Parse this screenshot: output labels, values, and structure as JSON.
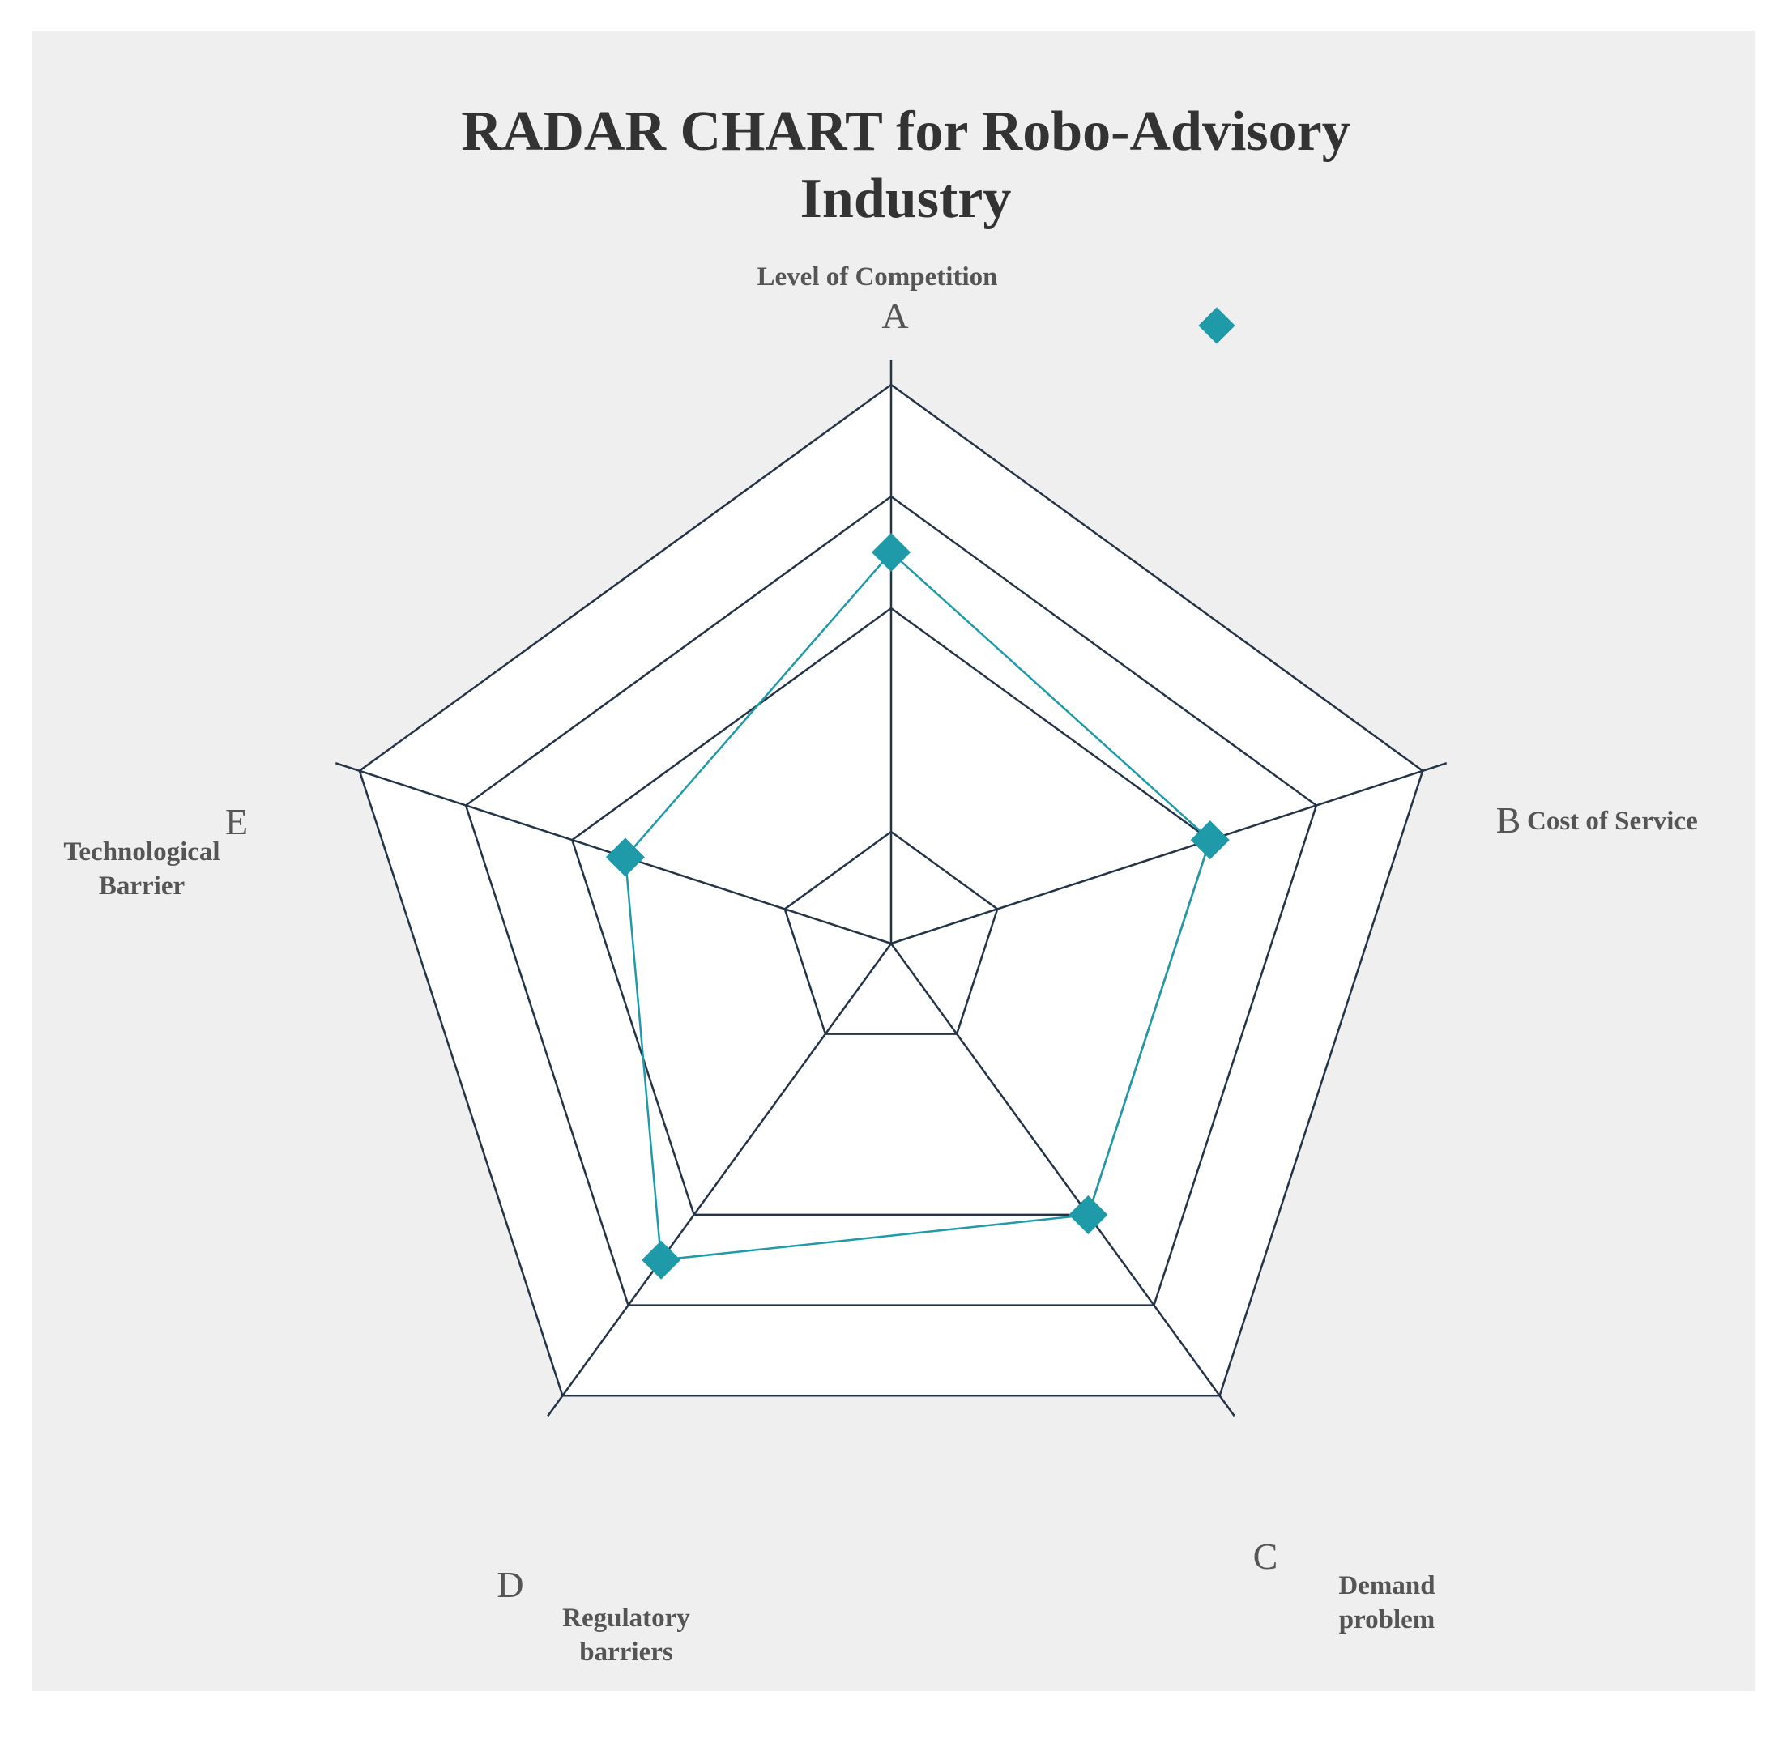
{
  "chart_data": {
    "type": "radar",
    "title": "RADAR CHART for Robo-Advisory Industry",
    "title_lines": [
      "RADAR CHART for Robo-Advisory",
      "Industry"
    ],
    "axes": [
      {
        "letter": "A",
        "label_lines": [
          "Level of Competition"
        ]
      },
      {
        "letter": "B",
        "label_lines": [
          "Cost of Service"
        ]
      },
      {
        "letter": "C",
        "label_lines": [
          "Demand",
          "problem"
        ]
      },
      {
        "letter": "D",
        "label_lines": [
          "Regulatory",
          "barriers"
        ]
      },
      {
        "letter": "E",
        "label_lines": [
          "Technological",
          "Barrier"
        ]
      }
    ],
    "rings": [
      1,
      3,
      4,
      5
    ],
    "range": [
      0,
      5
    ],
    "series": [
      {
        "values": [
          3.5,
          3.0,
          3.0,
          3.5,
          2.5
        ],
        "color": "#1f9aa8",
        "marker": "diamond"
      }
    ],
    "legend": {
      "position": "top-right",
      "marker": "diamond",
      "color": "#1f9aa8"
    }
  }
}
